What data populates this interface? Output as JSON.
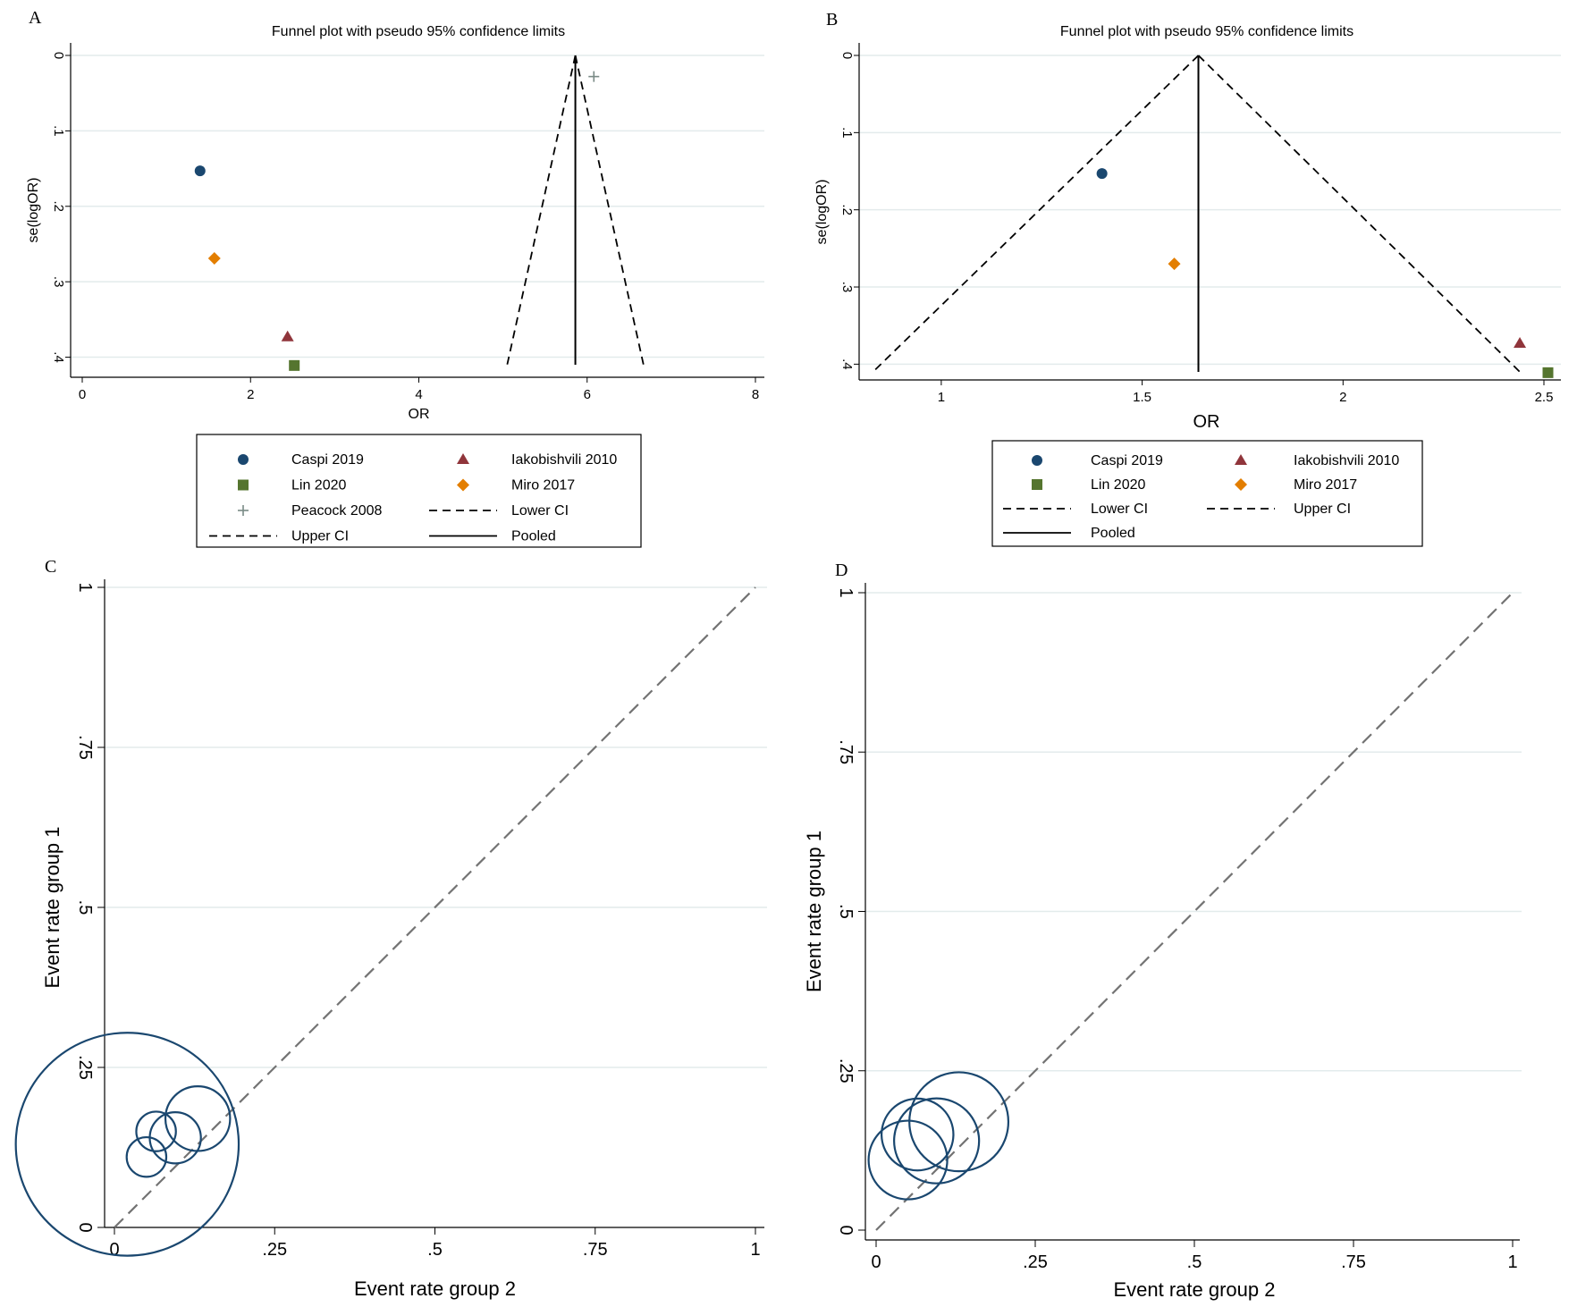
{
  "chart_data": [
    {
      "panel": "A",
      "type": "scatter",
      "title": "Funnel plot with pseudo 95% confidence limits",
      "xlabel": "OR",
      "ylabel": "se(logOR)",
      "xlim": [
        0,
        8
      ],
      "ylim": [
        0,
        0.41
      ],
      "y_reversed": true,
      "x_ticks": [
        0,
        2,
        4,
        6,
        8
      ],
      "x_tick_labels": [
        "0",
        "2",
        "4",
        "6",
        "8"
      ],
      "y_ticks": [
        0,
        0.1,
        0.2,
        0.3,
        0.4
      ],
      "y_tick_labels": [
        "0",
        ".1",
        ".2",
        ".3",
        ".4"
      ],
      "series": [
        {
          "name": "Caspi 2019",
          "marker": "circle",
          "color": "#1a476f",
          "x": 1.4,
          "y": 0.153
        },
        {
          "name": "Lin 2020",
          "marker": "square",
          "color": "#55752f",
          "x": 2.52,
          "y": 0.411
        },
        {
          "name": "Peacock 2008",
          "marker": "plus",
          "color": "#7a8b86",
          "x": 6.08,
          "y": 0.028
        },
        {
          "name": "Iakobishvili 2010",
          "marker": "triangle",
          "color": "#90353b",
          "x": 2.44,
          "y": 0.373
        },
        {
          "name": "Miro 2017",
          "marker": "diamond",
          "color": "#e37e00",
          "x": 1.57,
          "y": 0.269
        }
      ],
      "pooled": 5.86,
      "lower_ci": [
        [
          5.86,
          0
        ],
        [
          5.05,
          0.41
        ]
      ],
      "upper_ci": [
        [
          5.86,
          0
        ],
        [
          6.67,
          0.41
        ]
      ],
      "legend": {
        "position": "bottom",
        "entries": [
          "Caspi 2019",
          "Iakobishvili 2010",
          "Lin 2020",
          "Miro 2017",
          "Peacock 2008",
          "Lower CI",
          "Upper CI",
          "Pooled"
        ]
      }
    },
    {
      "panel": "B",
      "type": "scatter",
      "title": "Funnel plot with pseudo 95% confidence limits",
      "xlabel": "OR",
      "ylabel": "se(logOR)",
      "xlim": [
        0.8,
        2.52
      ],
      "ylim": [
        0,
        0.41
      ],
      "y_reversed": true,
      "x_ticks": [
        1,
        1.5,
        2,
        2.5
      ],
      "x_tick_labels": [
        "1",
        "1.5",
        "2",
        "2.5"
      ],
      "y_ticks": [
        0,
        0.1,
        0.2,
        0.3,
        0.4
      ],
      "y_tick_labels": [
        "0",
        ".1",
        ".2",
        ".3",
        ".4"
      ],
      "series": [
        {
          "name": "Caspi 2019",
          "marker": "circle",
          "color": "#1a476f",
          "x": 1.4,
          "y": 0.153
        },
        {
          "name": "Lin 2020",
          "marker": "square",
          "color": "#55752f",
          "x": 2.51,
          "y": 0.411
        },
        {
          "name": "Iakobishvili 2010",
          "marker": "triangle",
          "color": "#90353b",
          "x": 2.44,
          "y": 0.373
        },
        {
          "name": "Miro 2017",
          "marker": "diamond",
          "color": "#e37e00",
          "x": 1.58,
          "y": 0.27
        }
      ],
      "pooled": 1.64,
      "lower_ci": [
        [
          1.64,
          0
        ],
        [
          0.83,
          0.41
        ]
      ],
      "upper_ci": [
        [
          1.64,
          0
        ],
        [
          2.44,
          0.41
        ]
      ],
      "legend": {
        "position": "bottom",
        "entries": [
          "Caspi 2019",
          "Iakobishvili 2010",
          "Lin 2020",
          "Miro 2017",
          "Lower CI",
          "Upper CI",
          "Pooled"
        ]
      }
    },
    {
      "panel": "C",
      "type": "scatter",
      "title": "",
      "xlabel": "Event rate group 2",
      "ylabel": "Event rate group 1",
      "xlim": [
        0,
        1
      ],
      "ylim": [
        0,
        1
      ],
      "x_ticks": [
        0,
        0.25,
        0.5,
        0.75,
        1
      ],
      "x_tick_labels": [
        "0",
        ".25",
        ".5",
        ".75",
        "1"
      ],
      "y_ticks": [
        0,
        0.25,
        0.5,
        0.75,
        1
      ],
      "y_tick_labels": [
        "0",
        ".25",
        ".5",
        ".75",
        "1"
      ],
      "reference_line": "y = x",
      "points": [
        {
          "x": 0.02,
          "y": 0.13,
          "size": 0.095
        },
        {
          "x": 0.05,
          "y": 0.11,
          "size": 0.003
        },
        {
          "x": 0.065,
          "y": 0.15,
          "size": 0.003
        },
        {
          "x": 0.095,
          "y": 0.14,
          "size": 0.005
        },
        {
          "x": 0.13,
          "y": 0.17,
          "size": 0.008
        }
      ]
    },
    {
      "panel": "D",
      "type": "scatter",
      "title": "",
      "xlabel": "Event rate group 2",
      "ylabel": "Event rate group 1",
      "xlim": [
        0,
        1
      ],
      "ylim": [
        0,
        1
      ],
      "x_ticks": [
        0,
        0.25,
        0.5,
        0.75,
        1
      ],
      "x_tick_labels": [
        "0",
        ".25",
        ".5",
        ".75",
        "1"
      ],
      "y_ticks": [
        0,
        0.25,
        0.5,
        0.75,
        1
      ],
      "y_tick_labels": [
        "0",
        ".25",
        ".5",
        ".75",
        "1"
      ],
      "reference_line": "y = x",
      "points": [
        {
          "x": 0.05,
          "y": 0.11,
          "size": 0.012
        },
        {
          "x": 0.065,
          "y": 0.15,
          "size": 0.01
        },
        {
          "x": 0.095,
          "y": 0.14,
          "size": 0.014
        },
        {
          "x": 0.13,
          "y": 0.17,
          "size": 0.019
        }
      ]
    }
  ],
  "panel_letters": [
    "A",
    "B",
    "C",
    "D"
  ],
  "colors": {
    "grid": "#e3ebec",
    "bubble": "#1a476f",
    "reference_line": "#737373",
    "axis": "#000000"
  }
}
